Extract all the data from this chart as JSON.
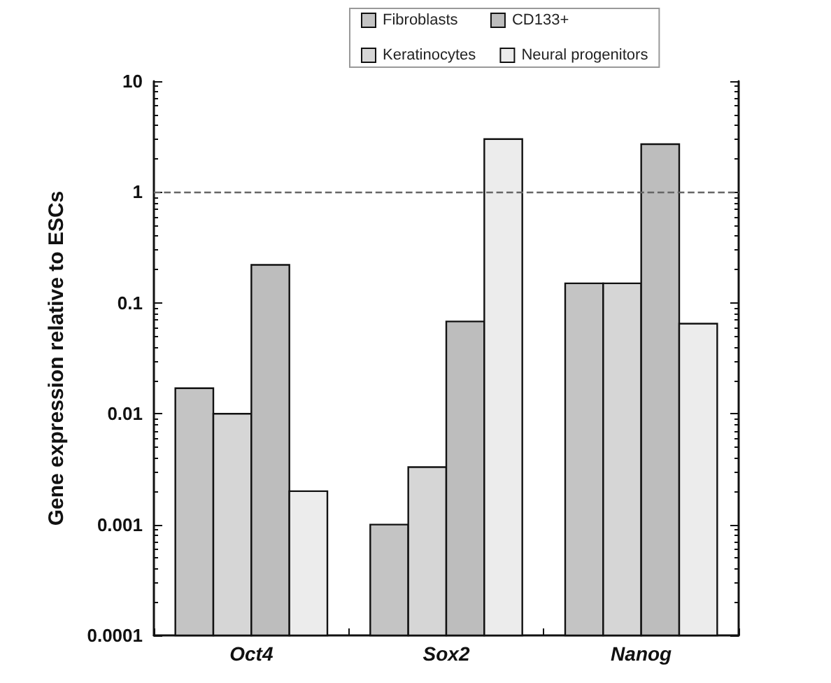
{
  "chart_data": {
    "type": "bar",
    "ylabel": "Gene expression relative to ESCs",
    "categories": [
      "Oct4",
      "Sox2",
      "Nanog"
    ],
    "series": [
      {
        "name": "Fibroblasts",
        "color": "#c4c4c4",
        "values": [
          0.017,
          0.001,
          0.15
        ]
      },
      {
        "name": "Keratinocytes",
        "color": "#d6d6d6",
        "values": [
          0.01,
          0.0033,
          0.15
        ]
      },
      {
        "name": "CD133+",
        "color": "#bdbdbd",
        "values": [
          0.22,
          0.068,
          2.7
        ]
      },
      {
        "name": "Neural progenitors",
        "color": "#ececec",
        "values": [
          0.002,
          3,
          0.065
        ]
      }
    ],
    "log": true,
    "ylim": [
      0.0001,
      10
    ],
    "yticks": [
      0.0001,
      0.001,
      0.01,
      0.1,
      1,
      10
    ],
    "ref_lines": [
      {
        "axis": "y",
        "value": 1,
        "color": "#666666",
        "line_style": "dashed"
      }
    ],
    "legend": "top",
    "grid": false
  }
}
